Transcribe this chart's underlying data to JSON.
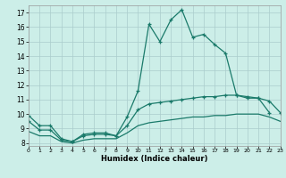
{
  "title": "",
  "xlabel": "Humidex (Indice chaleur)",
  "bg_color": "#cceee8",
  "grid_color": "#aacccc",
  "line_color": "#1a7a6a",
  "xlim": [
    0,
    23
  ],
  "ylim": [
    7.8,
    17.5
  ],
  "xticks": [
    0,
    1,
    2,
    3,
    4,
    5,
    6,
    7,
    8,
    9,
    10,
    11,
    12,
    13,
    14,
    15,
    16,
    17,
    18,
    19,
    20,
    21,
    22,
    23
  ],
  "yticks": [
    8,
    9,
    10,
    11,
    12,
    13,
    14,
    15,
    16,
    17
  ],
  "line_upper_x": [
    0,
    1,
    2,
    3,
    4,
    5,
    6,
    7,
    8,
    9,
    10,
    11,
    12,
    13,
    14,
    15,
    16,
    17,
    18,
    19,
    20,
    21,
    22
  ],
  "line_upper_y": [
    9.9,
    9.2,
    9.2,
    8.3,
    8.1,
    8.6,
    8.7,
    8.7,
    8.5,
    9.8,
    11.6,
    16.2,
    15.0,
    16.5,
    17.2,
    15.3,
    15.5,
    14.8,
    14.2,
    11.3,
    11.1,
    11.1,
    10.1
  ],
  "line_mid_x": [
    0,
    1,
    2,
    3,
    4,
    5,
    6,
    7,
    8,
    9,
    10,
    11,
    12,
    13,
    14,
    15,
    16,
    17,
    18,
    19,
    20,
    21,
    22,
    23
  ],
  "line_mid_y": [
    9.5,
    8.9,
    8.9,
    8.2,
    8.1,
    8.5,
    8.6,
    8.6,
    8.5,
    9.2,
    10.3,
    10.7,
    10.8,
    10.9,
    11.0,
    11.1,
    11.2,
    11.2,
    11.3,
    11.3,
    11.2,
    11.1,
    10.9,
    10.1
  ],
  "line_lower_x": [
    0,
    1,
    2,
    3,
    4,
    5,
    6,
    7,
    8,
    9,
    10,
    11,
    12,
    13,
    14,
    15,
    16,
    17,
    18,
    19,
    20,
    21,
    22,
    23
  ],
  "line_lower_y": [
    8.8,
    8.5,
    8.5,
    8.1,
    8.0,
    8.2,
    8.3,
    8.3,
    8.3,
    8.7,
    9.2,
    9.4,
    9.5,
    9.6,
    9.7,
    9.8,
    9.8,
    9.9,
    9.9,
    10.0,
    10.0,
    10.0,
    9.8,
    9.5
  ]
}
